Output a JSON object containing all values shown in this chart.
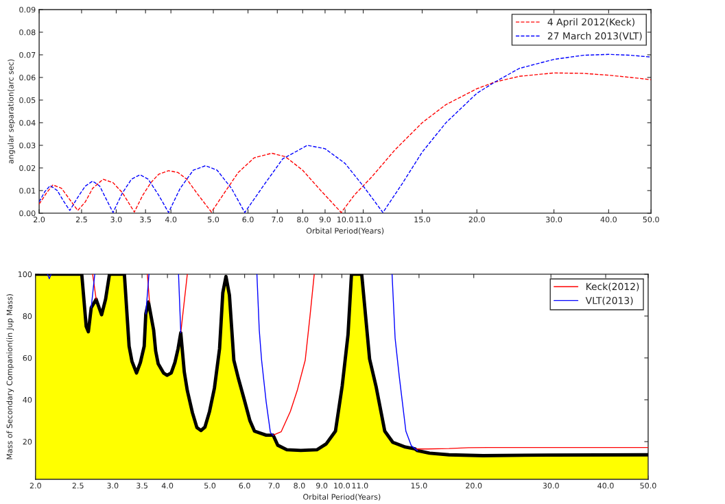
{
  "chart_data": [
    {
      "type": "line",
      "xlabel": "Orbital Period(Years)",
      "ylabel": "angular separation(arc sec)",
      "log": "x",
      "xlim": [
        2,
        50
      ],
      "ylim": [
        0,
        0.09
      ],
      "xticks": [
        {
          "value": 2,
          "label": "2.0"
        },
        {
          "value": 2.5,
          "label": "2.5"
        },
        {
          "value": 3,
          "label": "3.0"
        },
        {
          "value": 3.5,
          "label": "3.5"
        },
        {
          "value": 4,
          "label": "4.0"
        },
        {
          "value": 5,
          "label": "5.0"
        },
        {
          "value": 6,
          "label": "6.0"
        },
        {
          "value": 7,
          "label": "7.0"
        },
        {
          "value": 8,
          "label": "8.0"
        },
        {
          "value": 9,
          "label": "9.0"
        },
        {
          "value": 10,
          "label": "10.0"
        },
        {
          "value": 11,
          "label": "11.0"
        },
        {
          "value": 15,
          "label": "15.0"
        },
        {
          "value": 20,
          "label": "20.0"
        },
        {
          "value": 30,
          "label": "30.0"
        },
        {
          "value": 40,
          "label": "40.0"
        },
        {
          "value": 50,
          "label": "50.0"
        }
      ],
      "yticks": [
        {
          "value": 0,
          "label": "0.00"
        },
        0.01,
        0.02,
        0.03,
        0.04,
        0.05,
        0.06,
        0.07,
        0.08,
        0.09
      ],
      "legend": "top right",
      "grid": false,
      "series": [
        {
          "name": "4 April 2012(Keck)",
          "color": "#ff0000",
          "line_style": "dashed",
          "x": [
            2.0,
            2.08,
            2.15,
            2.25,
            2.35,
            2.45,
            2.55,
            2.65,
            2.8,
            2.95,
            3.1,
            3.3,
            3.45,
            3.6,
            3.75,
            3.95,
            4.15,
            4.35,
            4.6,
            4.95,
            5.3,
            5.7,
            6.2,
            6.8,
            7.3,
            8.0,
            8.8,
            9.8,
            10.5,
            11.5,
            13,
            15,
            17,
            20,
            22,
            25,
            30,
            35,
            40,
            45,
            50
          ],
          "values": [
            0.004,
            0.009,
            0.0125,
            0.011,
            0.006,
            0.0012,
            0.005,
            0.011,
            0.015,
            0.0135,
            0.009,
            0.0005,
            0.008,
            0.0135,
            0.0172,
            0.0188,
            0.018,
            0.015,
            0.0085,
            0.0005,
            0.009,
            0.018,
            0.0245,
            0.0265,
            0.025,
            0.019,
            0.01,
            0.0003,
            0.008,
            0.016,
            0.028,
            0.04,
            0.048,
            0.055,
            0.058,
            0.0605,
            0.062,
            0.0618,
            0.061,
            0.06,
            0.059
          ]
        },
        {
          "name": "27 March 2013(VLT)",
          "color": "#0000ff",
          "line_style": "dashed",
          "x": [
            2.0,
            2.06,
            2.12,
            2.2,
            2.28,
            2.35,
            2.45,
            2.55,
            2.65,
            2.75,
            2.85,
            2.95,
            3.1,
            3.25,
            3.4,
            3.55,
            3.75,
            3.95,
            4.2,
            4.5,
            4.8,
            5.1,
            5.5,
            5.9,
            6.5,
            7.2,
            8.2,
            9.0,
            10.0,
            11.0,
            12.2,
            13.5,
            15,
            17,
            20,
            22,
            25,
            30,
            35,
            40,
            45,
            50
          ],
          "values": [
            0.005,
            0.0095,
            0.0122,
            0.01,
            0.005,
            0.0012,
            0.007,
            0.012,
            0.0142,
            0.012,
            0.006,
            0.0003,
            0.009,
            0.015,
            0.017,
            0.015,
            0.008,
            0.0003,
            0.011,
            0.019,
            0.021,
            0.019,
            0.011,
            0.0003,
            0.012,
            0.024,
            0.03,
            0.0285,
            0.022,
            0.012,
            0.0003,
            0.013,
            0.027,
            0.04,
            0.053,
            0.058,
            0.064,
            0.068,
            0.0698,
            0.0702,
            0.0698,
            0.069
          ]
        }
      ]
    },
    {
      "type": "line",
      "xlabel": "Orbital Period(Years)",
      "ylabel": "Mass of Secondary Companion(in Jup Mass)",
      "log": "x",
      "xlim": [
        2,
        50
      ],
      "ylim": [
        2,
        100
      ],
      "xticks": [
        {
          "value": 2,
          "label": "2.0"
        },
        {
          "value": 2.5,
          "label": "2.5"
        },
        {
          "value": 3,
          "label": "3.0"
        },
        {
          "value": 3.5,
          "label": "3.5"
        },
        {
          "value": 4,
          "label": "4.0"
        },
        {
          "value": 5,
          "label": "5.0"
        },
        {
          "value": 6,
          "label": "6.0"
        },
        {
          "value": 7,
          "label": "7.0"
        },
        {
          "value": 8,
          "label": "8.0"
        },
        {
          "value": 9,
          "label": "9.0"
        },
        {
          "value": 10,
          "label": "10.0"
        },
        {
          "value": 11,
          "label": "11.0"
        },
        {
          "value": 15,
          "label": "15.0"
        },
        {
          "value": 20,
          "label": "20.0"
        },
        {
          "value": 30,
          "label": "30.0"
        },
        {
          "value": 40,
          "label": "40.0"
        },
        {
          "value": 50,
          "label": "50.0"
        }
      ],
      "yticks": [
        20,
        40,
        60,
        80,
        100
      ],
      "legend": "top right",
      "grid": false,
      "series": [
        {
          "type": "area",
          "color": "#ffff00",
          "x": [
            2.0,
            2.55,
            2.61,
            2.64,
            2.68,
            2.75,
            2.83,
            2.89,
            2.95,
            3.19,
            3.27,
            3.32,
            3.4,
            3.47,
            3.54,
            3.57,
            3.62,
            3.72,
            3.76,
            3.81,
            3.92,
            3.99,
            4.08,
            4.16,
            4.23,
            4.29,
            4.37,
            4.44,
            4.56,
            4.67,
            4.77,
            4.87,
            4.99,
            5.12,
            5.26,
            5.35,
            5.44,
            5.54,
            5.67,
            5.81,
            5.99,
            6.17,
            6.32,
            6.72,
            6.97,
            7.14,
            7.49,
            8.06,
            8.77,
            9.21,
            9.67,
            10.02,
            10.33,
            10.52,
            11.1,
            11.57,
            11.98,
            12.53,
            13.07,
            13.96,
            14.69,
            14.88,
            15.86,
            17.56,
            20.99,
            29.6,
            50
          ],
          "values": [
            100,
            100,
            75,
            72.5,
            84,
            88,
            80.6,
            88,
            100,
            100,
            65.6,
            58.3,
            52.8,
            57.8,
            65.6,
            81,
            86.7,
            73.3,
            63.3,
            57.2,
            52.8,
            51.7,
            52.8,
            57.8,
            64.4,
            72,
            53.3,
            44.4,
            33.9,
            26.7,
            25.3,
            26.9,
            34.4,
            45.6,
            64.4,
            91.1,
            98.9,
            90,
            58.9,
            50,
            40,
            30,
            25,
            23.1,
            23.1,
            18.3,
            16.1,
            15.8,
            16.1,
            18.9,
            25,
            46.7,
            71.1,
            100,
            100,
            59.5,
            46,
            25,
            19.7,
            17.4,
            16.5,
            15.7,
            14.5,
            13.7,
            13.3,
            13.6,
            13.7
          ]
        },
        {
          "name": "Keck(2012)",
          "color": "#ff0000",
          "x": [
            2.7,
            2.75,
            2.9,
            3.6,
            3.64,
            3.9,
            4.29,
            4.44,
            5.0,
            6.97,
            7.27,
            7.63,
            7.91,
            8.25,
            8.46,
            8.65,
            9.5,
            14.69,
            15.66,
            17.56,
            19.45,
            21.53,
            50
          ],
          "values": [
            100,
            88.1,
            null,
            100,
            86.7,
            null,
            72,
            100,
            null,
            23.1,
            24.7,
            34.4,
            44.4,
            58.9,
            80,
            100,
            null,
            16.5,
            16.5,
            16.7,
            17.1,
            17.2,
            17.2
          ]
        },
        {
          "name": "VLT(2013)",
          "color": "#0000ff",
          "x": [
            2.13,
            2.15,
            2.17,
            2.3,
            2.68,
            2.73,
            3.0,
            3.57,
            3.63,
            3.9,
            4.24,
            4.29,
            5.0,
            6.4,
            6.48,
            6.56,
            6.72,
            6.87,
            6.97,
            8.0,
            13.02,
            13.23,
            13.53,
            14.0,
            14.41,
            14.88
          ],
          "values": [
            100,
            97.8,
            100,
            null,
            84,
            100,
            null,
            81,
            100,
            null,
            100,
            72,
            null,
            100,
            73.3,
            58.9,
            38.9,
            24.4,
            23,
            null,
            100,
            69.4,
            50.7,
            25,
            18,
            15.7
          ]
        }
      ]
    }
  ]
}
